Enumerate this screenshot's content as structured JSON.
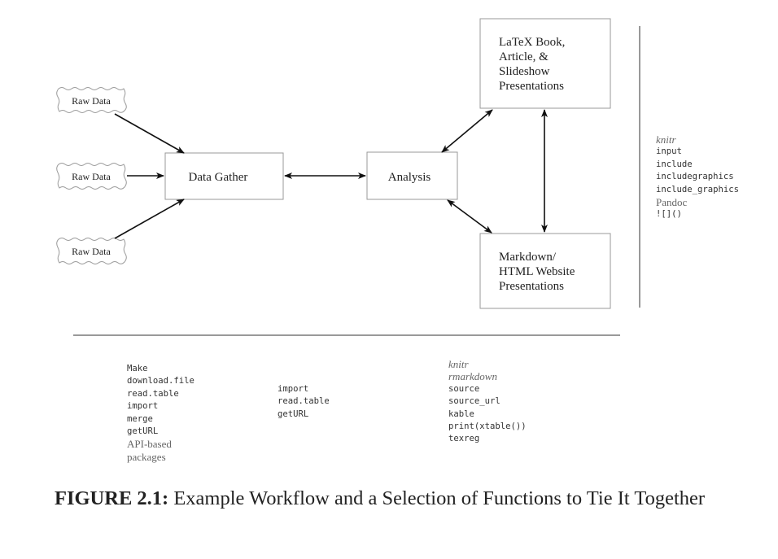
{
  "diagram": {
    "raw_data": [
      "Raw Data",
      "Raw Data",
      "Raw Data"
    ],
    "data_gather": "Data Gather",
    "analysis": "Analysis",
    "latex_box": [
      "LaTeX Book,",
      "Article, &",
      "Slideshow",
      "Presentations"
    ],
    "markdown_box": [
      "Markdown/",
      "HTML Website",
      "Presentations"
    ]
  },
  "right_list": [
    {
      "text": "knitr",
      "style": "ital"
    },
    {
      "text": "input",
      "style": "mono"
    },
    {
      "text": "include",
      "style": "mono"
    },
    {
      "text": "includegraphics",
      "style": "mono"
    },
    {
      "text": "include_graphics",
      "style": "mono"
    },
    {
      "text": "Pandoc",
      "style": "serif"
    },
    {
      "text": "![]()",
      "style": "mono"
    }
  ],
  "gather_functions": [
    {
      "text": "Make",
      "style": "mono"
    },
    {
      "text": "download.file",
      "style": "mono"
    },
    {
      "text": "read.table",
      "style": "mono"
    },
    {
      "text": "import",
      "style": "mono"
    },
    {
      "text": "merge",
      "style": "mono"
    },
    {
      "text": "getURL",
      "style": "mono"
    },
    {
      "text": "API-based",
      "style": "serif"
    },
    {
      "text": "packages",
      "style": "serif"
    }
  ],
  "analysis_functions": [
    {
      "text": "import",
      "style": "mono"
    },
    {
      "text": "read.table",
      "style": "mono"
    },
    {
      "text": "getURL",
      "style": "mono"
    }
  ],
  "presentation_functions": [
    {
      "text": "knitr",
      "style": "ital"
    },
    {
      "text": "rmarkdown",
      "style": "ital"
    },
    {
      "text": "source",
      "style": "mono"
    },
    {
      "text": "source_url",
      "style": "mono"
    },
    {
      "text": "kable",
      "style": "mono"
    },
    {
      "text": "print(xtable())",
      "style": "mono"
    },
    {
      "text": "texreg",
      "style": "mono"
    }
  ],
  "caption": {
    "label": "FIGURE 2.1:",
    "text": " Example Workflow and a Selection of Functions to Tie It Together"
  }
}
